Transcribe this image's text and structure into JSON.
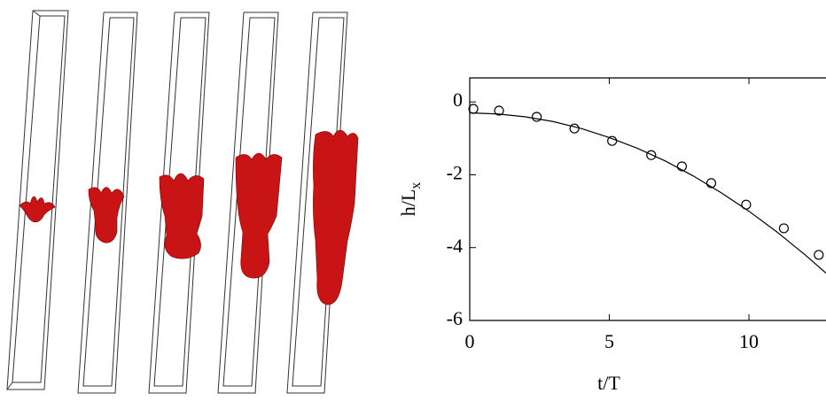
{
  "chart_data": {
    "type": "line",
    "xlabel": "t/T",
    "ylabel": "h/L",
    "ylabel_subscript": "x",
    "xlim": [
      0,
      12.76
    ],
    "ylim": [
      -6,
      0.66
    ],
    "xticks": [
      0,
      5,
      10
    ],
    "yticks": [
      0,
      -2,
      -4,
      -6
    ],
    "series": [
      {
        "marker": "circle",
        "color": "#000000",
        "x": [
          0.13,
          1.05,
          2.4,
          3.75,
          5.1,
          6.5,
          7.6,
          8.65,
          9.9,
          11.25,
          12.5
        ],
        "values": [
          -0.19,
          -0.24,
          -0.41,
          -0.73,
          -1.07,
          -1.46,
          -1.77,
          -2.23,
          -2.82,
          -3.47,
          -4.2
        ]
      },
      {
        "marker": "none",
        "color": "#000000",
        "x": [
          0,
          1,
          2,
          3,
          4,
          5,
          6,
          7,
          8,
          9,
          10,
          11,
          12,
          12.76
        ],
        "values": [
          -0.3,
          -0.33,
          -0.41,
          -0.54,
          -0.73,
          -0.98,
          -1.27,
          -1.62,
          -2.03,
          -2.49,
          -3.0,
          -3.57,
          -4.19,
          -4.7
        ]
      }
    ]
  }
}
